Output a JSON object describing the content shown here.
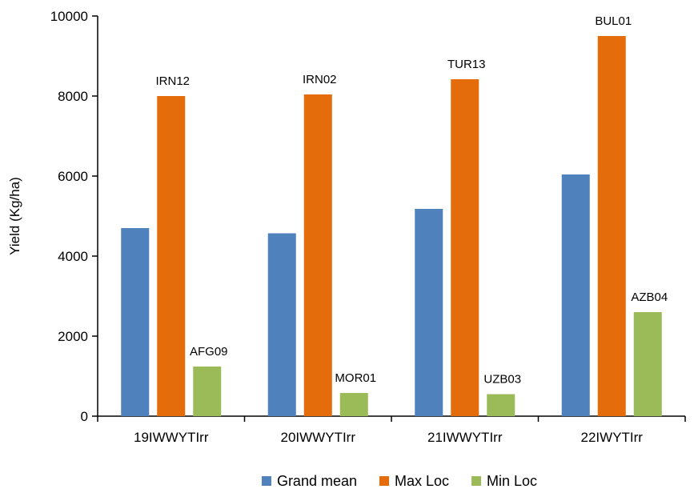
{
  "chart_data": {
    "type": "bar",
    "title": "",
    "xlabel": "",
    "ylabel": "Yield (Kg/ha)",
    "ylim": [
      0,
      10000
    ],
    "yticks": [
      0,
      2000,
      4000,
      6000,
      8000,
      10000
    ],
    "ytick_labels": [
      "0",
      "2000",
      "4000",
      "6000",
      "8000",
      "10000"
    ],
    "grid": false,
    "legend_position": "bottom",
    "categories": [
      "19IWWYTIrr",
      "20IWWYTIrr",
      "21IWWYTIrr",
      "22IWYTIrr"
    ],
    "series": [
      {
        "name": "Grand mean",
        "color": "#4F81BD",
        "values": [
          4700,
          4570,
          5180,
          6040
        ],
        "labels": [
          "",
          "",
          "",
          ""
        ]
      },
      {
        "name": "Max Loc",
        "color": "#E46C0A",
        "values": [
          8000,
          8040,
          8420,
          9500
        ],
        "labels": [
          "IRN12",
          "IRN02",
          "TUR13",
          "BUL01"
        ]
      },
      {
        "name": "Min Loc",
        "color": "#9BBB59",
        "values": [
          1240,
          580,
          550,
          2600
        ],
        "labels": [
          "AFG09",
          "MOR01",
          "UZB03",
          "AZB04"
        ]
      }
    ]
  }
}
